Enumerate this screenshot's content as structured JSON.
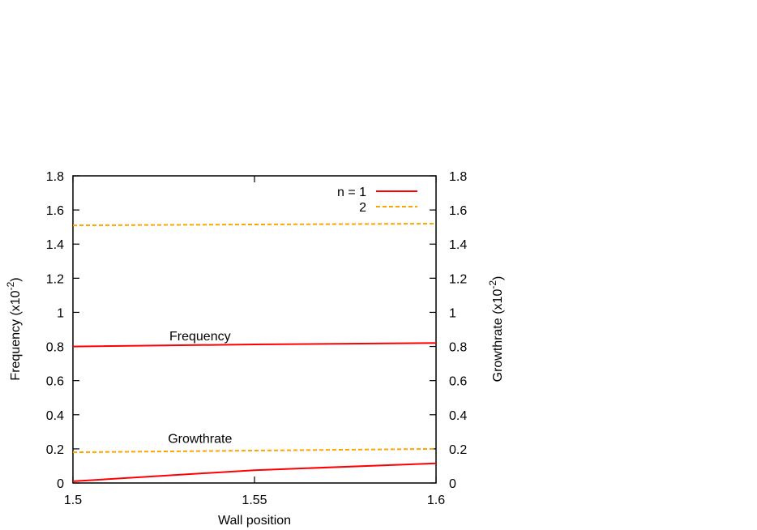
{
  "chart_data": {
    "type": "line",
    "xlabel": "Wall position",
    "ylabel_left": "Frequency (x10",
    "ylabel_left_exp": "-2",
    "ylabel_left_close": ")",
    "ylabel_right": "Growthrate (x10",
    "ylabel_right_exp": "-2",
    "ylabel_right_close": ")",
    "xlim": [
      1.5,
      1.6
    ],
    "ylim": [
      0,
      1.8
    ],
    "x_ticks": [
      "1.5",
      "1.55",
      "1.6"
    ],
    "y_ticks": [
      "0",
      "0.2",
      "0.4",
      "0.6",
      "0.8",
      "1",
      "1.2",
      "1.4",
      "1.6",
      "1.8"
    ],
    "legend_position": "top-right",
    "annotations": [
      {
        "text": "Frequency",
        "x": 1.535,
        "y": 0.835
      },
      {
        "text": "Growthrate",
        "x": 1.535,
        "y": 0.235
      }
    ],
    "series": [
      {
        "name": "n = 1",
        "color": "#ff0000",
        "dash": "solid",
        "lines": [
          {
            "x": [
              1.5,
              1.55,
              1.6
            ],
            "y": [
              0.8,
              0.812,
              0.82
            ]
          },
          {
            "x": [
              1.5,
              1.55,
              1.6
            ],
            "y": [
              0.01,
              0.075,
              0.115
            ]
          }
        ]
      },
      {
        "name": "2",
        "color": "#ffa500",
        "dash": "dashed",
        "lines": [
          {
            "x": [
              1.5,
              1.55,
              1.6
            ],
            "y": [
              1.51,
              1.515,
              1.52
            ]
          },
          {
            "x": [
              1.5,
              1.55,
              1.6
            ],
            "y": [
              0.18,
              0.19,
              0.2
            ]
          }
        ]
      }
    ]
  }
}
